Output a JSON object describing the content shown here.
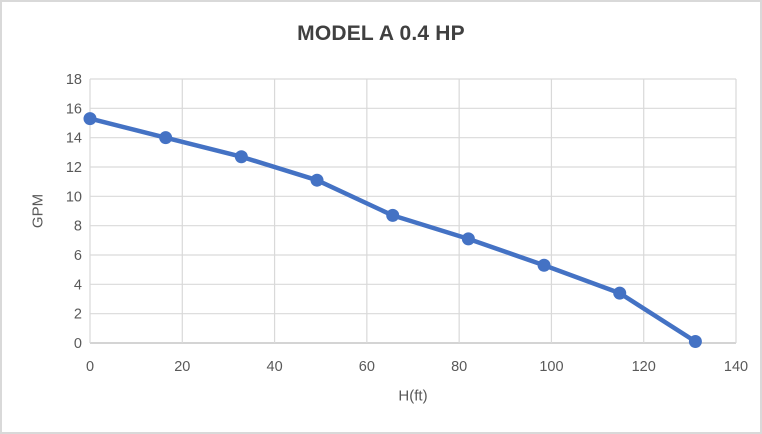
{
  "window": {
    "background": "#FFFFFF",
    "frame_border_color": "#D9D9D9"
  },
  "chart_data": {
    "type": "line",
    "title": "MODEL A 0.4 HP",
    "xlabel": "H(ft)",
    "ylabel": "GPM",
    "x": [
      0,
      16.4,
      32.8,
      49.2,
      65.6,
      82,
      98.4,
      114.8,
      131.2
    ],
    "y": [
      15.3,
      14,
      12.7,
      11.1,
      8.7,
      7.1,
      5.3,
      3.4,
      0.1
    ],
    "xlim": [
      0,
      140
    ],
    "ylim": [
      0,
      18
    ],
    "x_ticks": [
      0,
      20,
      40,
      60,
      80,
      100,
      120,
      140
    ],
    "y_ticks": [
      0,
      2,
      4,
      6,
      8,
      10,
      12,
      14,
      16,
      18
    ],
    "grid": true,
    "legend": "none",
    "marker_shape": "circle",
    "colors": {
      "line": "#4472C4",
      "marker": "#4472C4",
      "gridline": "#D9D9D9",
      "axis_line": "#C6C6C6",
      "tick_label": "#595959",
      "title": "#404040",
      "axis_title": "#595959"
    }
  }
}
